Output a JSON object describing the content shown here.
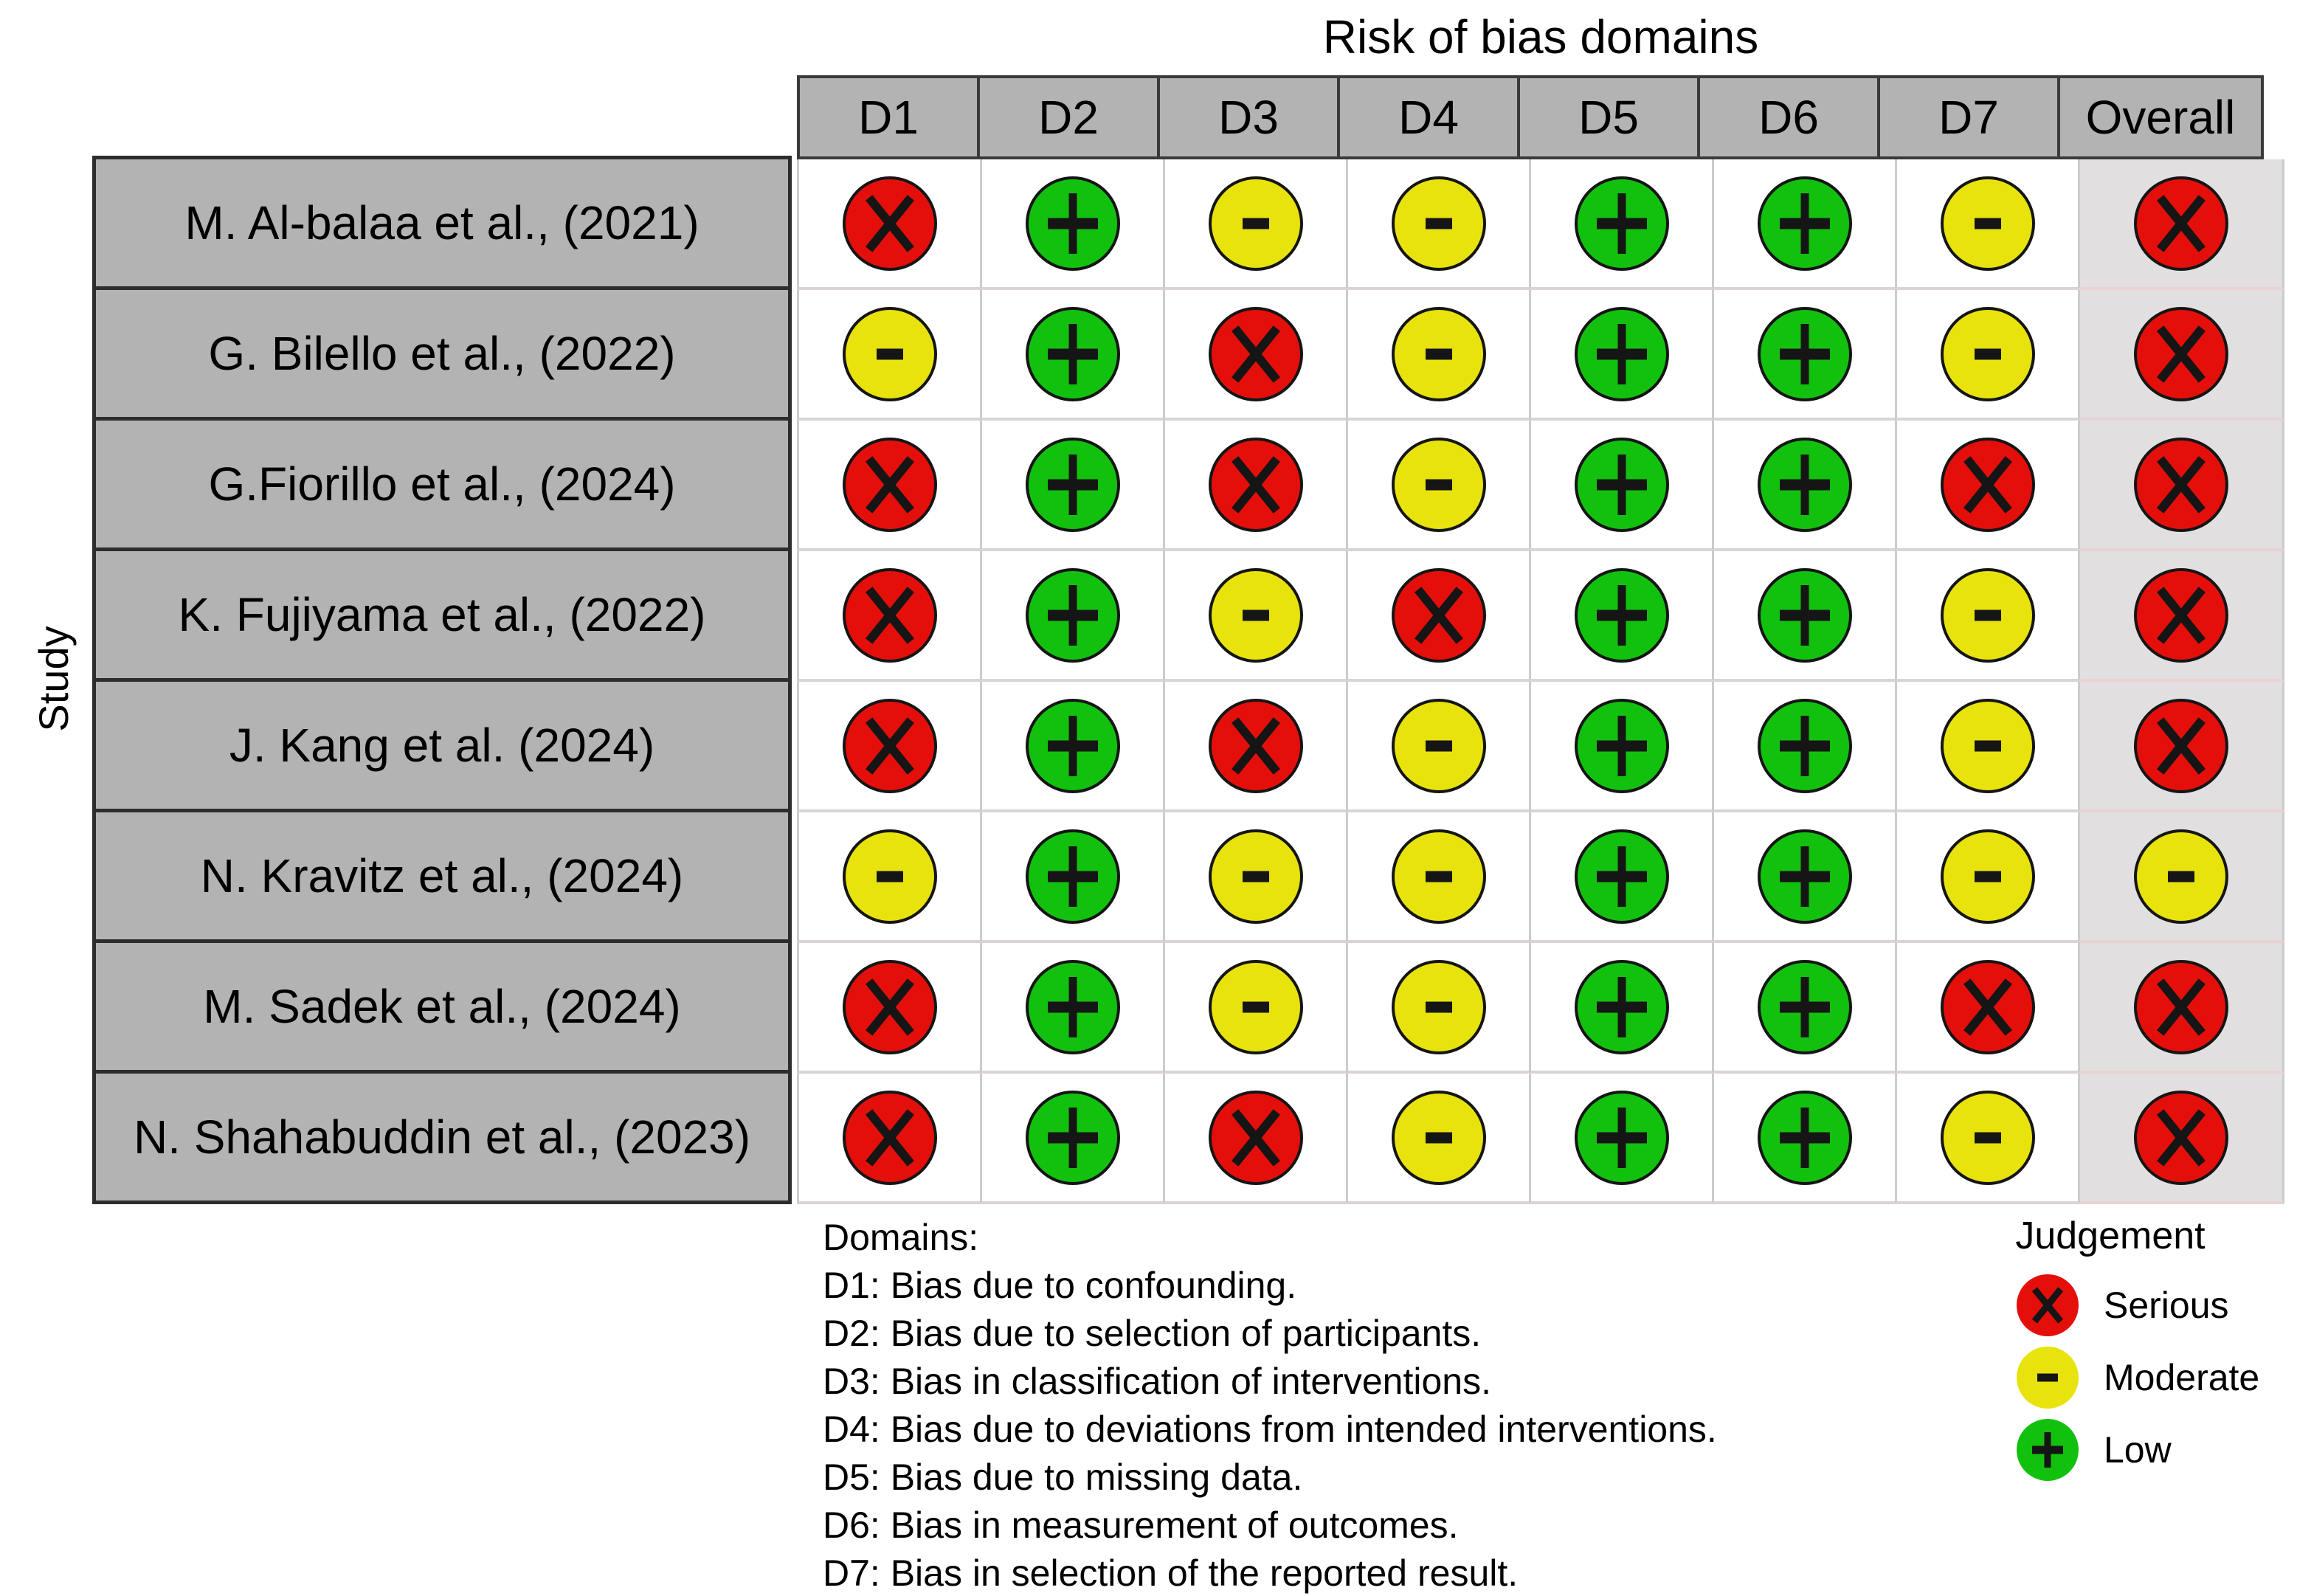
{
  "chart_data": {
    "type": "heatmap",
    "title": "Risk of bias domains",
    "y_axis_label": "Study",
    "columns": [
      "D1",
      "D2",
      "D3",
      "D4",
      "D5",
      "D6",
      "D7",
      "Overall"
    ],
    "studies": [
      {
        "name": "M. Al-balaa et al., (2021)",
        "judgements": [
          "serious",
          "low",
          "moderate",
          "moderate",
          "low",
          "low",
          "moderate",
          "serious"
        ]
      },
      {
        "name": "G. Bilello et al., (2022)",
        "judgements": [
          "moderate",
          "low",
          "serious",
          "moderate",
          "low",
          "low",
          "moderate",
          "serious"
        ]
      },
      {
        "name": "G.Fiorillo et al., (2024)",
        "judgements": [
          "serious",
          "low",
          "serious",
          "moderate",
          "low",
          "low",
          "serious",
          "serious"
        ]
      },
      {
        "name": "K. Fujiyama et al., (2022)",
        "judgements": [
          "serious",
          "low",
          "moderate",
          "serious",
          "low",
          "low",
          "moderate",
          "serious"
        ]
      },
      {
        "name": "J. Kang et al. (2024)",
        "judgements": [
          "serious",
          "low",
          "serious",
          "moderate",
          "low",
          "low",
          "moderate",
          "serious"
        ]
      },
      {
        "name": "N. Kravitz et al., (2024)",
        "judgements": [
          "moderate",
          "low",
          "moderate",
          "moderate",
          "low",
          "low",
          "moderate",
          "moderate"
        ]
      },
      {
        "name": "M. Sadek et al., (2024)",
        "judgements": [
          "serious",
          "low",
          "moderate",
          "moderate",
          "low",
          "low",
          "serious",
          "serious"
        ]
      },
      {
        "name": "N. Shahabuddin et al., (2023)",
        "judgements": [
          "serious",
          "low",
          "serious",
          "moderate",
          "low",
          "low",
          "moderate",
          "serious"
        ]
      }
    ],
    "legend": {
      "title": "Judgement",
      "items": [
        {
          "label": "Serious",
          "judgement": "serious",
          "symbol": "x-icon",
          "color": "#e40f0b"
        },
        {
          "label": "Moderate",
          "judgement": "moderate",
          "symbol": "minus-icon",
          "color": "#e8e30d"
        },
        {
          "label": "Low",
          "judgement": "low",
          "symbol": "plus-icon",
          "color": "#12c10e"
        }
      ]
    },
    "domains_note": {
      "heading": "Domains:",
      "items": [
        "D1: Bias due to confounding.",
        "D2: Bias due to selection of participants.",
        "D3: Bias in classification of interventions.",
        "D4: Bias due to deviations from intended interventions.",
        "D5: Bias due to missing data.",
        "D6: Bias in measurement of outcomes.",
        "D7: Bias in selection of the reported result."
      ]
    },
    "colors": {
      "serious": "#e40f0b",
      "moderate": "#e8e30d",
      "low": "#12c10e",
      "symbol_ink": "#151515",
      "header_bg": "#b3b3b3",
      "header_border": "#3a3a3a",
      "study_cell_bg": "#b3b3b3",
      "study_border": "#2d2d2d",
      "overall_column_bg": "#e1dfdf",
      "grid_line": "#cccccc",
      "row_divider": "#dbd4d4"
    },
    "layout": {
      "grid": true,
      "legend_position": "bottom-right",
      "notes_position": "bottom-left"
    }
  }
}
